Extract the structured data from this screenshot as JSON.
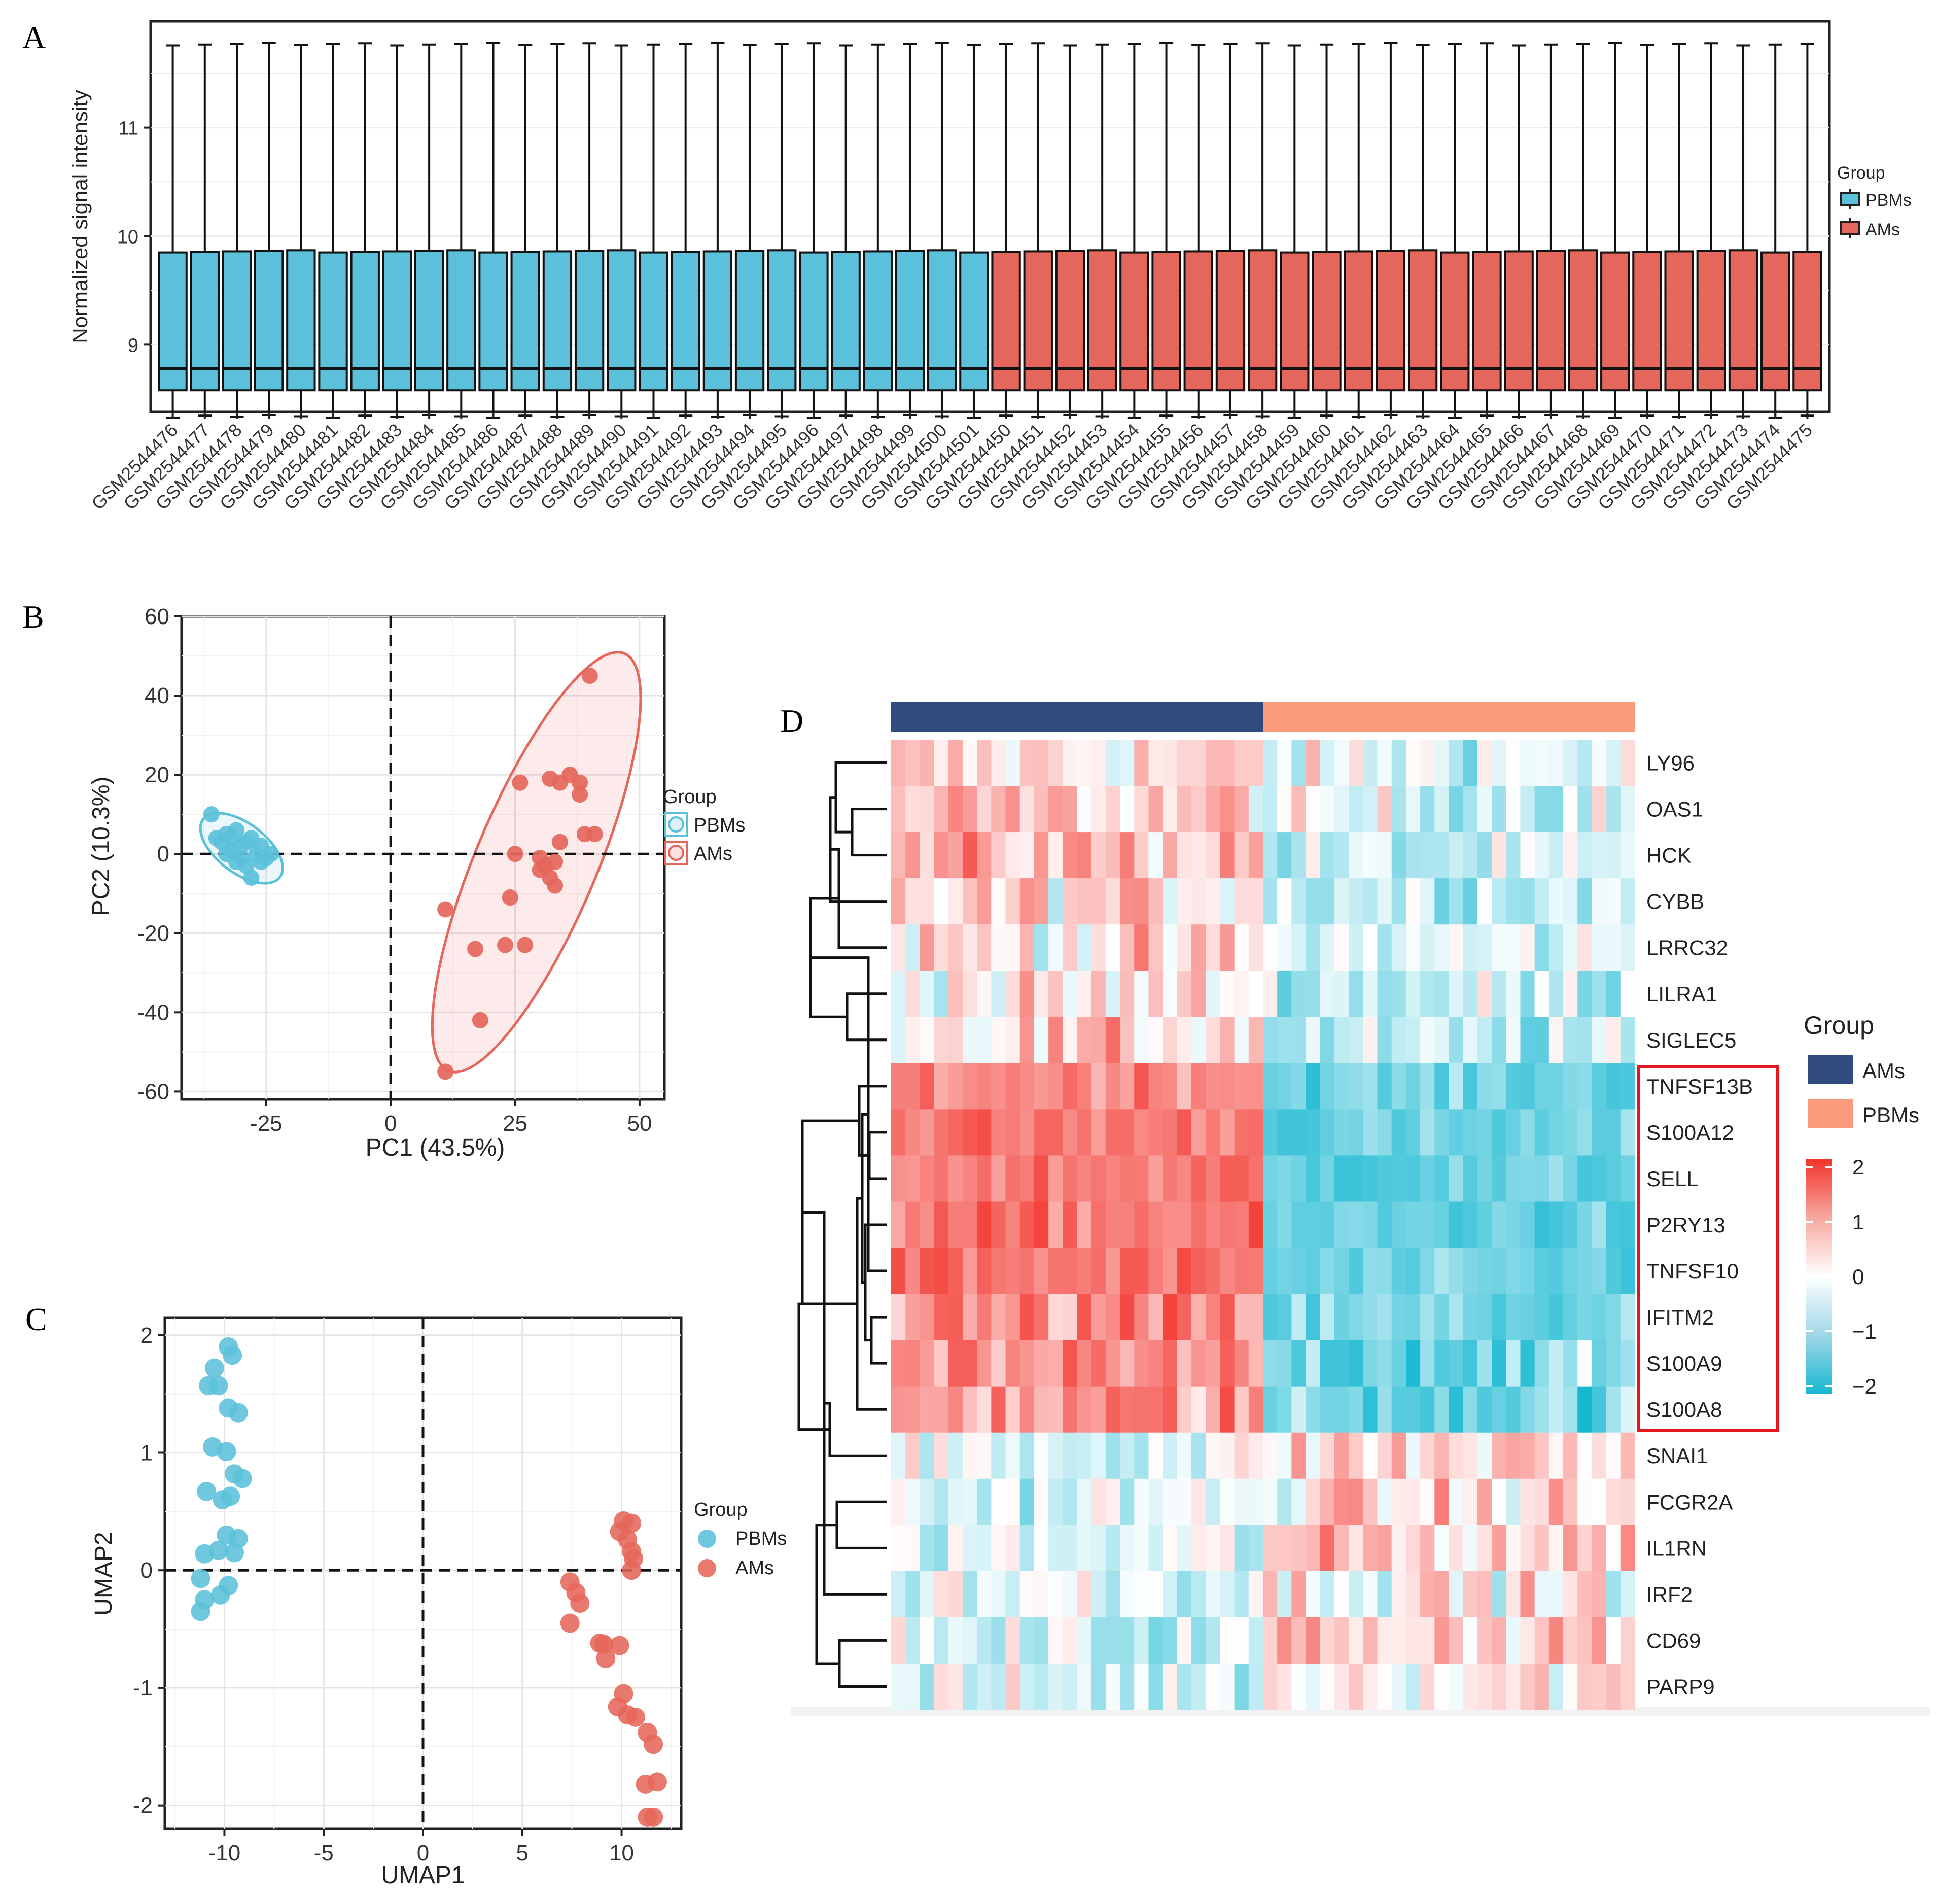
{
  "panels": {
    "a": "A",
    "b": "B",
    "c": "C",
    "d": "D"
  },
  "colors": {
    "pbms": "#5BC0DA",
    "ams": "#E5665A",
    "navy": "#2F4B80",
    "salmon": "#FB9A7A",
    "highlight": "#E4151B"
  },
  "chart_data": [
    {
      "id": "A",
      "type": "box",
      "ylabel": "Normalized signal intensity",
      "yticks": [
        9,
        10,
        11
      ],
      "ylim": [
        8.38,
        11.98
      ],
      "legend_title": "Group",
      "legend": [
        "PBMs",
        "AMs"
      ],
      "samples": [
        "GSM2544476",
        "GSM2544477",
        "GSM2544478",
        "GSM2544479",
        "GSM2544480",
        "GSM2544481",
        "GSM2544482",
        "GSM2544483",
        "GSM2544484",
        "GSM2544485",
        "GSM2544486",
        "GSM2544487",
        "GSM2544488",
        "GSM2544489",
        "GSM2544490",
        "GSM2544491",
        "GSM2544492",
        "GSM2544493",
        "GSM2544494",
        "GSM2544495",
        "GSM2544496",
        "GSM2544497",
        "GSM2544498",
        "GSM2544499",
        "GSM2544500",
        "GSM2544501",
        "GSM2544450",
        "GSM2544451",
        "GSM2544452",
        "GSM2544453",
        "GSM2544454",
        "GSM2544455",
        "GSM2544456",
        "GSM2544457",
        "GSM2544458",
        "GSM2544459",
        "GSM2544460",
        "GSM2544461",
        "GSM2544462",
        "GSM2544463",
        "GSM2544464",
        "GSM2544465",
        "GSM2544466",
        "GSM2544467",
        "GSM2544468",
        "GSM2544469",
        "GSM2544470",
        "GSM2544471",
        "GSM2544472",
        "GSM2544473",
        "GSM2544474",
        "GSM2544475"
      ],
      "n_pbms": 26,
      "box_stats": {
        "min": 8.34,
        "q1": 8.58,
        "median": 8.78,
        "q3": 9.86,
        "max": 11.77
      }
    },
    {
      "id": "B",
      "type": "scatter",
      "xlabel": "PC1 (43.5%)",
      "ylabel": "PC2 (10.3%)",
      "xlim": [
        -42,
        55
      ],
      "ylim": [
        -62,
        60
      ],
      "xticks": [
        -25,
        0,
        25,
        50
      ],
      "yticks": [
        -60,
        -40,
        -20,
        0,
        20,
        40,
        60
      ],
      "legend_title": "Group",
      "legend": [
        "PBMs",
        "AMs"
      ],
      "series": [
        {
          "name": "PBMs",
          "points": [
            [
              -36,
              10
            ],
            [
              -35,
              4
            ],
            [
              -34,
              3
            ],
            [
              -33,
              5
            ],
            [
              -32,
              4
            ],
            [
              -32,
              1
            ],
            [
              -31,
              6
            ],
            [
              -30,
              2
            ],
            [
              -30,
              -1
            ],
            [
              -29,
              3
            ],
            [
              -29,
              -3
            ],
            [
              -28,
              -6
            ],
            [
              -27,
              0
            ],
            [
              -26,
              2
            ],
            [
              -26,
              -2
            ],
            [
              -25,
              -1
            ],
            [
              -24,
              0
            ],
            [
              -33,
              0
            ],
            [
              -31,
              -2
            ],
            [
              -28,
              4
            ]
          ]
        },
        {
          "name": "AMs",
          "points": [
            [
              40,
              45
            ],
            [
              26,
              18
            ],
            [
              32,
              19
            ],
            [
              34,
              18
            ],
            [
              36,
              20
            ],
            [
              38,
              18
            ],
            [
              38,
              15
            ],
            [
              39,
              5
            ],
            [
              41,
              5
            ],
            [
              34,
              3
            ],
            [
              25,
              0
            ],
            [
              30,
              -1
            ],
            [
              31,
              -3
            ],
            [
              33,
              -2
            ],
            [
              30,
              -4
            ],
            [
              32,
              -6
            ],
            [
              33,
              -8
            ],
            [
              24,
              -11
            ],
            [
              11,
              -14
            ],
            [
              17,
              -24
            ],
            [
              23,
              -23
            ],
            [
              27,
              -23
            ],
            [
              18,
              -42
            ],
            [
              11,
              -55
            ]
          ]
        }
      ]
    },
    {
      "id": "C",
      "type": "scatter",
      "xlabel": "UMAP1",
      "ylabel": "UMAP2",
      "xlim": [
        -13,
        13
      ],
      "ylim": [
        -2.2,
        2.15
      ],
      "xticks": [
        -10,
        -5,
        0,
        5,
        10
      ],
      "yticks": [
        -2,
        -1,
        0,
        1,
        2
      ],
      "legend_title": "Group",
      "legend": [
        "PBMs",
        "AMs"
      ],
      "series": [
        {
          "name": "PBMs",
          "points": [
            [
              -9.8,
              1.9
            ],
            [
              -9.6,
              1.83
            ],
            [
              -10.5,
              1.72
            ],
            [
              -10.8,
              1.57
            ],
            [
              -10.3,
              1.57
            ],
            [
              -9.8,
              1.38
            ],
            [
              -9.3,
              1.34
            ],
            [
              -10.6,
              1.05
            ],
            [
              -9.9,
              1.01
            ],
            [
              -9.5,
              0.82
            ],
            [
              -9.1,
              0.78
            ],
            [
              -10.9,
              0.67
            ],
            [
              -10.1,
              0.6
            ],
            [
              -9.7,
              0.63
            ],
            [
              -9.9,
              0.3
            ],
            [
              -9.3,
              0.27
            ],
            [
              -10.3,
              0.17
            ],
            [
              -11.0,
              0.14
            ],
            [
              -9.5,
              0.15
            ],
            [
              -11.2,
              -0.07
            ],
            [
              -9.8,
              -0.13
            ],
            [
              -10.2,
              -0.21
            ],
            [
              -11.2,
              -0.35
            ],
            [
              -11.0,
              -0.25
            ]
          ]
        },
        {
          "name": "AMs",
          "points": [
            [
              10.1,
              0.42
            ],
            [
              10.5,
              0.4
            ],
            [
              9.9,
              0.33
            ],
            [
              10.3,
              0.26
            ],
            [
              10.5,
              0.16
            ],
            [
              10.6,
              0.1
            ],
            [
              10.5,
              0.0
            ],
            [
              7.4,
              -0.1
            ],
            [
              7.7,
              -0.19
            ],
            [
              7.9,
              -0.28
            ],
            [
              7.4,
              -0.45
            ],
            [
              8.9,
              -0.62
            ],
            [
              9.1,
              -0.63
            ],
            [
              9.9,
              -0.64
            ],
            [
              9.2,
              -0.75
            ],
            [
              10.1,
              -1.05
            ],
            [
              9.8,
              -1.16
            ],
            [
              10.3,
              -1.23
            ],
            [
              10.7,
              -1.25
            ],
            [
              11.3,
              -1.38
            ],
            [
              11.6,
              -1.48
            ],
            [
              11.2,
              -1.82
            ],
            [
              11.8,
              -1.8
            ],
            [
              11.6,
              -2.1
            ],
            [
              11.3,
              -2.1
            ]
          ]
        }
      ]
    },
    {
      "id": "D",
      "type": "heatmap",
      "genes": [
        "LY96",
        "OAS1",
        "HCK",
        "CYBB",
        "LRRC32",
        "LILRA1",
        "SIGLEC5",
        "TNFSF13B",
        "S100A12",
        "SELL",
        "P2RY13",
        "TNFSF10",
        "IFITM2",
        "S100A9",
        "S100A8",
        "SNAI1",
        "FCGR2A",
        "IL1RN",
        "IRF2",
        "CD69",
        "PARP9"
      ],
      "highlighted_genes": [
        "TNFSF13B",
        "S100A12",
        "SELL",
        "P2RY13",
        "TNFSF10",
        "IFITM2",
        "S100A9",
        "S100A8"
      ],
      "n_columns": 52,
      "n_left": 26,
      "row_mean_left": [
        0.3,
        0.5,
        0.7,
        0.4,
        0.3,
        0.2,
        0.4,
        1.2,
        1.3,
        1.3,
        1.3,
        1.3,
        1.0,
        0.9,
        1.0,
        -0.2,
        -0.3,
        -0.3,
        -0.1,
        -0.5,
        -0.4
      ],
      "row_mean_right": [
        -0.2,
        -0.3,
        -0.6,
        -0.4,
        -0.3,
        -0.5,
        -0.7,
        -1.2,
        -1.3,
        -1.3,
        -1.3,
        -1.3,
        -1.2,
        -1.1,
        -1.1,
        0.4,
        0.3,
        0.5,
        0.2,
        0.6,
        0.3
      ],
      "legend_title": "Group",
      "group_legend": [
        "AMs",
        "PBMs"
      ],
      "scale_ticks": [
        "2",
        "1",
        "0",
        "−1",
        "−2"
      ],
      "scale_range": [
        -2,
        2
      ]
    }
  ]
}
